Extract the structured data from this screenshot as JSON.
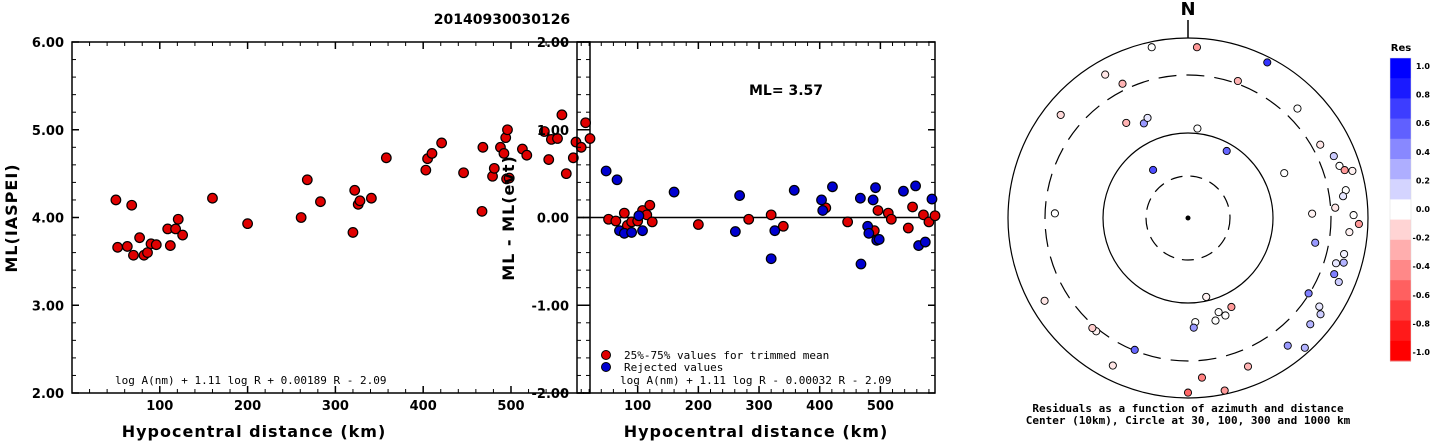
{
  "title": "20140930030126",
  "chart_data": [
    {
      "type": "scatter",
      "xlabel": "Hypocentral distance (km)",
      "ylabel": "ML(IASPEI)",
      "xlim": [
        0,
        590
      ],
      "ylim": [
        2.0,
        6.0
      ],
      "xticks": [
        "100",
        "200",
        "300",
        "400",
        "500"
      ],
      "yticks": [
        "2.00",
        "3.00",
        "4.00",
        "5.00",
        "6.00"
      ],
      "formula": "log A(nm) + 1.11 log R + 0.00189 R - 2.09",
      "series": [
        {
          "color": "#e00000",
          "points": [
            [
              52,
              3.66
            ],
            [
              50,
              4.2
            ],
            [
              63,
              3.67
            ],
            [
              68,
              4.14
            ],
            [
              70,
              3.57
            ],
            [
              77,
              3.77
            ],
            [
              82,
              3.57
            ],
            [
              86,
              3.6
            ],
            [
              90,
              3.7
            ],
            [
              96,
              3.69
            ],
            [
              109,
              3.87
            ],
            [
              112,
              3.68
            ],
            [
              118,
              3.87
            ],
            [
              121,
              3.98
            ],
            [
              126,
              3.8
            ],
            [
              160,
              4.22
            ],
            [
              200,
              3.93
            ],
            [
              261,
              4.0
            ],
            [
              268,
              4.43
            ],
            [
              283,
              4.18
            ],
            [
              320,
              3.83
            ],
            [
              322,
              4.31
            ],
            [
              326,
              4.15
            ],
            [
              328,
              4.19
            ],
            [
              341,
              4.22
            ],
            [
              358,
              4.68
            ],
            [
              403,
              4.54
            ],
            [
              405,
              4.67
            ],
            [
              410,
              4.73
            ],
            [
              421,
              4.85
            ],
            [
              446,
              4.51
            ],
            [
              467,
              4.07
            ],
            [
              468,
              4.8
            ],
            [
              479,
              4.47
            ],
            [
              481,
              4.56
            ],
            [
              488,
              4.8
            ],
            [
              492,
              4.73
            ],
            [
              494,
              4.91
            ],
            [
              495,
              4.44
            ],
            [
              496,
              5.0
            ],
            [
              498,
              4.45
            ],
            [
              513,
              4.78
            ],
            [
              518,
              4.71
            ],
            [
              538,
              4.98
            ],
            [
              543,
              4.66
            ],
            [
              546,
              4.89
            ],
            [
              553,
              4.9
            ],
            [
              558,
              5.17
            ],
            [
              563,
              4.5
            ],
            [
              571,
              4.68
            ],
            [
              574,
              4.86
            ],
            [
              580,
              4.8
            ],
            [
              585,
              5.08
            ],
            [
              590,
              4.9
            ]
          ]
        }
      ]
    },
    {
      "type": "scatter",
      "xlabel": "Hypocentral distance (km)",
      "ylabel": "ML - ML(evt)",
      "xlim": [
        0,
        590
      ],
      "ylim": [
        -2.0,
        2.0
      ],
      "xticks": [
        "100",
        "200",
        "300",
        "400",
        "500"
      ],
      "yticks": [
        "-2.00",
        "-1.00",
        "0.00",
        "1.00",
        "2.00"
      ],
      "annotation": "ML= 3.57",
      "formula": "log A(nm) + 1.11 log R - 0.00032 R - 2.09",
      "legend": [
        "25%-75% values for trimmed mean",
        "Rejected values"
      ],
      "series": [
        {
          "name": "25%-75% values for trimmed mean",
          "color": "#e00000",
          "points": [
            [
              52,
              -0.02
            ],
            [
              64,
              -0.04
            ],
            [
              78,
              0.05
            ],
            [
              83,
              -0.09
            ],
            [
              90,
              -0.05
            ],
            [
              100,
              -0.04
            ],
            [
              108,
              0.08
            ],
            [
              115,
              0.03
            ],
            [
              120,
              0.14
            ],
            [
              124,
              -0.05
            ],
            [
              200,
              -0.08
            ],
            [
              283,
              -0.02
            ],
            [
              320,
              0.03
            ],
            [
              340,
              -0.1
            ],
            [
              410,
              0.11
            ],
            [
              446,
              -0.05
            ],
            [
              490,
              -0.15
            ],
            [
              496,
              0.08
            ],
            [
              513,
              0.05
            ],
            [
              518,
              -0.02
            ],
            [
              546,
              -0.12
            ],
            [
              553,
              0.12
            ],
            [
              571,
              0.03
            ],
            [
              580,
              -0.05
            ],
            [
              590,
              0.02
            ]
          ]
        },
        {
          "name": "Rejected values",
          "color": "#0000d0",
          "points": [
            [
              48,
              0.53
            ],
            [
              66,
              0.43
            ],
            [
              70,
              -0.15
            ],
            [
              78,
              -0.18
            ],
            [
              90,
              -0.17
            ],
            [
              102,
              0.02
            ],
            [
              108,
              -0.15
            ],
            [
              160,
              0.29
            ],
            [
              261,
              -0.16
            ],
            [
              268,
              0.25
            ],
            [
              320,
              -0.47
            ],
            [
              326,
              -0.15
            ],
            [
              358,
              0.31
            ],
            [
              403,
              0.2
            ],
            [
              405,
              0.08
            ],
            [
              421,
              0.35
            ],
            [
              467,
              0.22
            ],
            [
              468,
              -0.53
            ],
            [
              479,
              -0.1
            ],
            [
              481,
              -0.18
            ],
            [
              488,
              0.2
            ],
            [
              492,
              0.34
            ],
            [
              494,
              -0.26
            ],
            [
              498,
              -0.25
            ],
            [
              538,
              0.3
            ],
            [
              558,
              0.36
            ],
            [
              563,
              -0.32
            ],
            [
              574,
              -0.28
            ],
            [
              585,
              0.21
            ]
          ]
        }
      ]
    },
    {
      "type": "scatter",
      "subtype": "polar residual plot",
      "north_label": "N",
      "caption_line1": "Residuals as a function of azimuth and distance",
      "caption_line2": "Center (10km), Circle at 30, 100, 300 and 1000 km",
      "colorbar_title": "Res",
      "colorbar_ticks": [
        "1.0",
        "0.8",
        "0.6",
        "0.4",
        "0.2",
        "0.0",
        "-0.2",
        "-0.4",
        "-0.6",
        "-0.8",
        "-1.0"
      ],
      "colorbar_colors": [
        "#0000ff",
        "#1a1aff",
        "#3d3dff",
        "#6060ff",
        "#8888ff",
        "#aeaeff",
        "#d4d4ff",
        "#ffffff",
        "#ffd4d4",
        "#ffaeae",
        "#ff8888",
        "#ff6060",
        "#ff3d3d",
        "#ff1a1a",
        "#ff0000"
      ],
      "points": [
        {
          "az": -12,
          "r": 0.97,
          "res": 0.0
        },
        {
          "az": 3,
          "r": 0.95,
          "res": -0.4
        },
        {
          "az": 27,
          "r": 0.97,
          "res": 0.8
        },
        {
          "az": -30,
          "r": 0.92,
          "res": -0.1
        },
        {
          "az": -26,
          "r": 0.83,
          "res": -0.3
        },
        {
          "az": 20,
          "r": 0.81,
          "res": -0.3
        },
        {
          "az": 45,
          "r": 0.86,
          "res": 0.0
        },
        {
          "az": -51,
          "r": 0.91,
          "res": -0.15
        },
        {
          "az": -33,
          "r": 0.63,
          "res": -0.3
        },
        {
          "az": -25,
          "r": 0.58,
          "res": 0.4
        },
        {
          "az": -22,
          "r": 0.6,
          "res": 0.1
        },
        {
          "az": 6,
          "r": 0.5,
          "res": 0.0
        },
        {
          "az": 30,
          "r": 0.43,
          "res": 0.6
        },
        {
          "az": 65,
          "r": 0.59,
          "res": 0.0
        },
        {
          "az": -36,
          "r": 0.33,
          "res": 0.7
        },
        {
          "az": 61,
          "r": 0.84,
          "res": -0.1
        },
        {
          "az": 67,
          "r": 0.88,
          "res": 0.2
        },
        {
          "az": 71,
          "r": 0.89,
          "res": 0.0
        },
        {
          "az": 74,
          "r": 0.95,
          "res": -0.05
        },
        {
          "az": 80,
          "r": 0.89,
          "res": 0.0
        },
        {
          "az": 73,
          "r": 0.91,
          "res": -0.4
        },
        {
          "az": 88,
          "r": 0.69,
          "res": -0.05
        },
        {
          "az": 86,
          "r": 0.82,
          "res": -0.1
        },
        {
          "az": 82,
          "r": 0.87,
          "res": 0.1
        },
        {
          "az": 89,
          "r": 0.92,
          "res": 0.0
        },
        {
          "az": 92,
          "r": 0.95,
          "res": -0.4
        },
        {
          "az": 95,
          "r": 0.9,
          "res": -0.05
        },
        {
          "az": -88,
          "r": 0.74,
          "res": 0.0
        },
        {
          "az": 101,
          "r": 0.72,
          "res": 0.4
        },
        {
          "az": 107,
          "r": 0.86,
          "res": 0.1
        },
        {
          "az": 106,
          "r": 0.9,
          "res": 0.3
        },
        {
          "az": 111,
          "r": 0.87,
          "res": 0.5
        },
        {
          "az": 113,
          "r": 0.91,
          "res": 0.2
        },
        {
          "az": 103,
          "r": 0.89,
          "res": 0.05
        },
        {
          "az": 122,
          "r": 0.79,
          "res": 0.5
        },
        {
          "az": 124,
          "r": 0.88,
          "res": 0.1
        },
        {
          "az": 126,
          "r": 0.91,
          "res": 0.2
        },
        {
          "az": 131,
          "r": 0.9,
          "res": 0.3
        },
        {
          "az": 138,
          "r": 0.97,
          "res": 0.3
        },
        {
          "az": 142,
          "r": 0.9,
          "res": 0.4
        },
        {
          "az": 167,
          "r": 0.45,
          "res": -0.05
        },
        {
          "az": 165,
          "r": 0.59,
          "res": 0.0
        },
        {
          "az": 162,
          "r": 0.55,
          "res": 0.0
        },
        {
          "az": 159,
          "r": 0.58,
          "res": 0.0
        },
        {
          "az": 154,
          "r": 0.55,
          "res": -0.4
        },
        {
          "az": 176,
          "r": 0.58,
          "res": 0.0
        },
        {
          "az": 177,
          "r": 0.61,
          "res": 0.4
        },
        {
          "az": 175,
          "r": 0.89,
          "res": -0.5
        },
        {
          "az": 180,
          "r": 0.97,
          "res": -0.6
        },
        {
          "az": 168,
          "r": 0.98,
          "res": -0.4
        },
        {
          "az": 158,
          "r": 0.89,
          "res": -0.3
        },
        {
          "az": 202,
          "r": 0.79,
          "res": 0.6
        },
        {
          "az": 219,
          "r": 0.81,
          "res": -0.05
        },
        {
          "az": 221,
          "r": 0.81,
          "res": -0.2
        },
        {
          "az": 207,
          "r": 0.92,
          "res": -0.1
        },
        {
          "az": 240,
          "r": 0.92,
          "res": -0.1
        }
      ]
    }
  ]
}
